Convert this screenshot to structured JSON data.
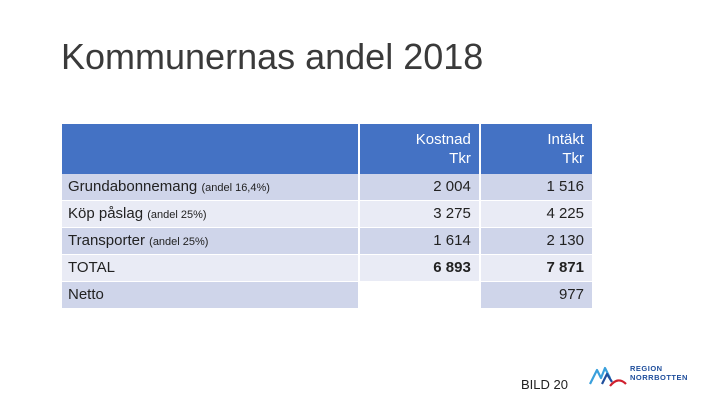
{
  "slide": {
    "title": "Kommunernas andel 2018",
    "footer_label": "BILD 20"
  },
  "logo": {
    "line1": "REGION",
    "line2": "NORRBOTTEN",
    "icon": "region-norrbotten-logo-icon",
    "colors": {
      "blue": "#1f4e9c",
      "red": "#d0202e",
      "cyan": "#3aa0dc"
    }
  },
  "table": {
    "header": {
      "col1": "",
      "col2_line1": "Kostnad",
      "col2_line2": "Tkr",
      "col3_line1": "Intäkt",
      "col3_line2": "Tkr"
    },
    "rows": [
      {
        "label": "Grundabonnemang",
        "note": "(andel 16,4%)",
        "kostnad": "2 004",
        "intakt": "1 516"
      },
      {
        "label": "Köp påslag",
        "note": "(andel 25%)",
        "kostnad": "3 275",
        "intakt": "4 225"
      },
      {
        "label": "Transporter",
        "note": "(andel 25%)",
        "kostnad": "1 614",
        "intakt": "2 130"
      },
      {
        "label": "TOTAL",
        "note": "",
        "kostnad": "6 893",
        "intakt": "7 871"
      },
      {
        "label": "Netto",
        "note": "",
        "kostnad": "",
        "intakt": "977"
      }
    ],
    "colors": {
      "header": "#4472c4",
      "row_odd": "#cfd5ea",
      "row_even": "#e9ebf5"
    }
  }
}
